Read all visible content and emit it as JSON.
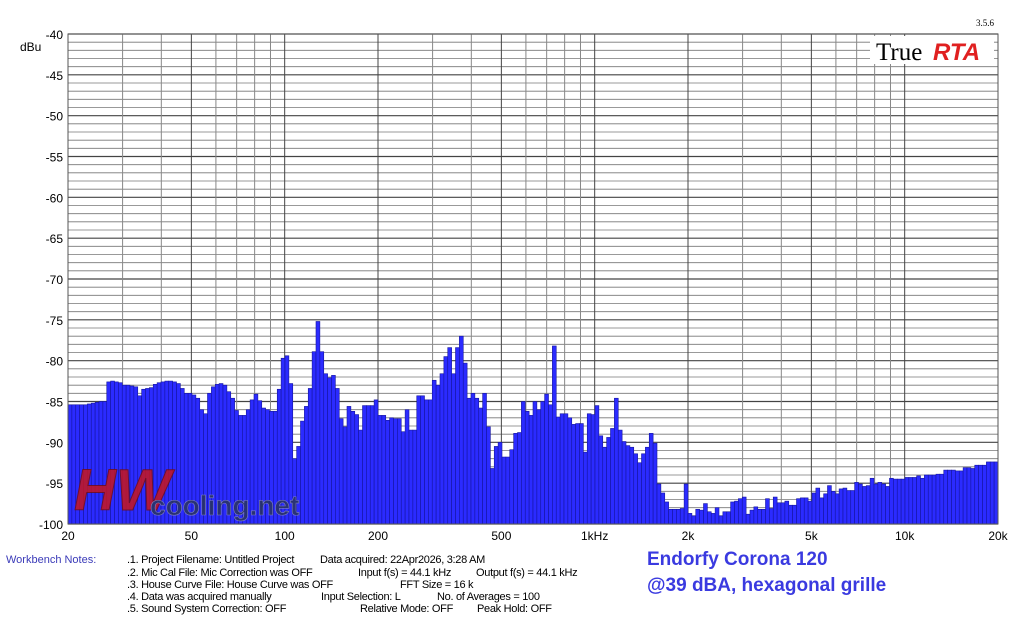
{
  "chart_data": {
    "type": "bar",
    "ylabel": "dBu",
    "ylim": [
      -100,
      -40
    ],
    "xlim": [
      20,
      20000
    ],
    "xscale": "log",
    "bands_per_octave": 24,
    "grid": true,
    "y_ticks": [
      "-40",
      "-45",
      "-50",
      "-55",
      "-60",
      "-65",
      "-70",
      "-75",
      "-80",
      "-85",
      "-90",
      "-95",
      "-100"
    ],
    "x_ticks": [
      {
        "value": 20,
        "label": "20"
      },
      {
        "value": 50,
        "label": "50"
      },
      {
        "value": 100,
        "label": "100"
      },
      {
        "value": 200,
        "label": "200"
      },
      {
        "value": 500,
        "label": "500"
      },
      {
        "value": 1000,
        "label": "1kHz"
      },
      {
        "value": 2000,
        "label": "2k"
      },
      {
        "value": 5000,
        "label": "5k"
      },
      {
        "value": 10000,
        "label": "10k"
      },
      {
        "value": 20000,
        "label": "20k"
      }
    ],
    "values": [
      -85.4,
      -85.4,
      -85.4,
      -85.4,
      -85.4,
      -85.3,
      -85.2,
      -85.1,
      -85.0,
      -85.0,
      -82.6,
      -82.5,
      -82.6,
      -82.7,
      -83.0,
      -83.0,
      -83.1,
      -83.2,
      -84.3,
      -83.5,
      -83.4,
      -83.3,
      -82.9,
      -82.7,
      -82.6,
      -82.5,
      -82.5,
      -82.6,
      -82.8,
      -83.4,
      -84.0,
      -84.0,
      -84.2,
      -84.6,
      -86.0,
      -86.5,
      -84.0,
      -83.2,
      -82.9,
      -82.8,
      -83.0,
      -83.8,
      -84.6,
      -86.1,
      -86.7,
      -86.7,
      -86.0,
      -84.8,
      -84.1,
      -84.9,
      -85.8,
      -86.0,
      -86.2,
      -86.2,
      -83.5,
      -79.7,
      -79.4,
      -82.8,
      -92.0,
      -90.5,
      -87.4,
      -85.6,
      -83.4,
      -78.9,
      -75.2,
      -78.9,
      -81.6,
      -82.1,
      -81.8,
      -83.4,
      -87.1,
      -88.1,
      -85.6,
      -86.2,
      -86.6,
      -88.5,
      -85.5,
      -85.5,
      -85.5,
      -84.8,
      -86.7,
      -86.7,
      -87.3,
      -87.0,
      -87.1,
      -87.1,
      -88.7,
      -86.0,
      -88.5,
      -88.5,
      -84.3,
      -84.3,
      -84.8,
      -84.8,
      -82.4,
      -83.0,
      -81.6,
      -79.5,
      -78.4,
      -81.6,
      -78.4,
      -77.0,
      -80.3,
      -84.6,
      -84.0,
      -84.6,
      -85.8,
      -84.0,
      -88.1,
      -93.2,
      -90.5,
      -90.0,
      -91.8,
      -91.8,
      -90.9,
      -88.9,
      -88.8,
      -85.0,
      -86.2,
      -86.7,
      -85.0,
      -86.0,
      -85.0,
      -84.1,
      -85.4,
      -78.2,
      -86.9,
      -86.5,
      -86.5,
      -87.0,
      -87.8,
      -87.7,
      -87.7,
      -91.2,
      -86.5,
      -86.6,
      -85.5,
      -89.2,
      -90.6,
      -89.4,
      -88.3,
      -84.6,
      -88.5,
      -89.9,
      -90.4,
      -90.6,
      -91.4,
      -92.5,
      -91.4,
      -90.6,
      -88.9,
      -90.1,
      -95.1,
      -96.2,
      -97.3,
      -98.2,
      -98.2,
      -98.2,
      -98.1,
      -95.1,
      -98.7,
      -99.0,
      -98.2,
      -98.3,
      -97.5,
      -98.5,
      -98.7,
      -98.0,
      -99.0,
      -98.5,
      -98.5,
      -97.3,
      -97.2,
      -96.9,
      -96.7,
      -98.8,
      -98.3,
      -97.9,
      -98.2,
      -98.2,
      -96.9,
      -98.1,
      -96.7,
      -97.4,
      -97.4,
      -97.2,
      -97.7,
      -97.7,
      -96.9,
      -96.8,
      -96.8,
      -97.2,
      -96.2,
      -95.6,
      -96.8,
      -96.3,
      -95.3,
      -96.0,
      -96.3,
      -95.7,
      -95.6,
      -95.9,
      -95.9,
      -94.9,
      -95.1,
      -95.4,
      -95.3,
      -94.4,
      -95.1,
      -94.9,
      -95.1,
      -95.4,
      -94.4,
      -94.5,
      -94.5,
      -94.5,
      -94.3,
      -94.3,
      -94.3,
      -94.1,
      -94.4,
      -94.0,
      -94.0,
      -94.0,
      -93.9,
      -93.9,
      -93.4,
      -93.4,
      -93.4,
      -93.5,
      -93.5,
      -93.1,
      -93.1,
      -93.2,
      -92.8,
      -92.8,
      -92.8,
      -92.4,
      -92.4,
      -92.4
    ],
    "colors": {
      "bar": "#2b2bff",
      "bar_edge": "#1515a0"
    }
  },
  "logo": {
    "true": "True",
    "rta": "RTA",
    "version": "3.5.6"
  },
  "watermark": {
    "hw": "HW",
    "site": "cooling.net"
  },
  "notes": {
    "label": "Workbench Notes:",
    "lines": [
      ".1. Project Filename: Untitled Project",
      ".2. Mic Cal File: Mic Correction was OFF",
      ".3. House Curve File: House Curve was OFF",
      ".4. Data was acquired manually",
      ".5. Sound System Correction: OFF"
    ],
    "data_acquired": "Data acquired: 22Apr2026, 3:28 AM",
    "input_fs": "Input f(s) = 44.1 kHz",
    "output_fs": "Output f(s) = 44.1 kHz",
    "fft_size": "FFT Size = 16 k",
    "input_selection": "Input Selection: L",
    "averages": "No. of Averages = 100",
    "relative_mode": "Relative Mode:  OFF",
    "peak_hold": "Peak Hold: OFF"
  },
  "annotation": {
    "line1": "Endorfy Corona 120",
    "line2": "@39 dBA, hexagonal grille"
  }
}
